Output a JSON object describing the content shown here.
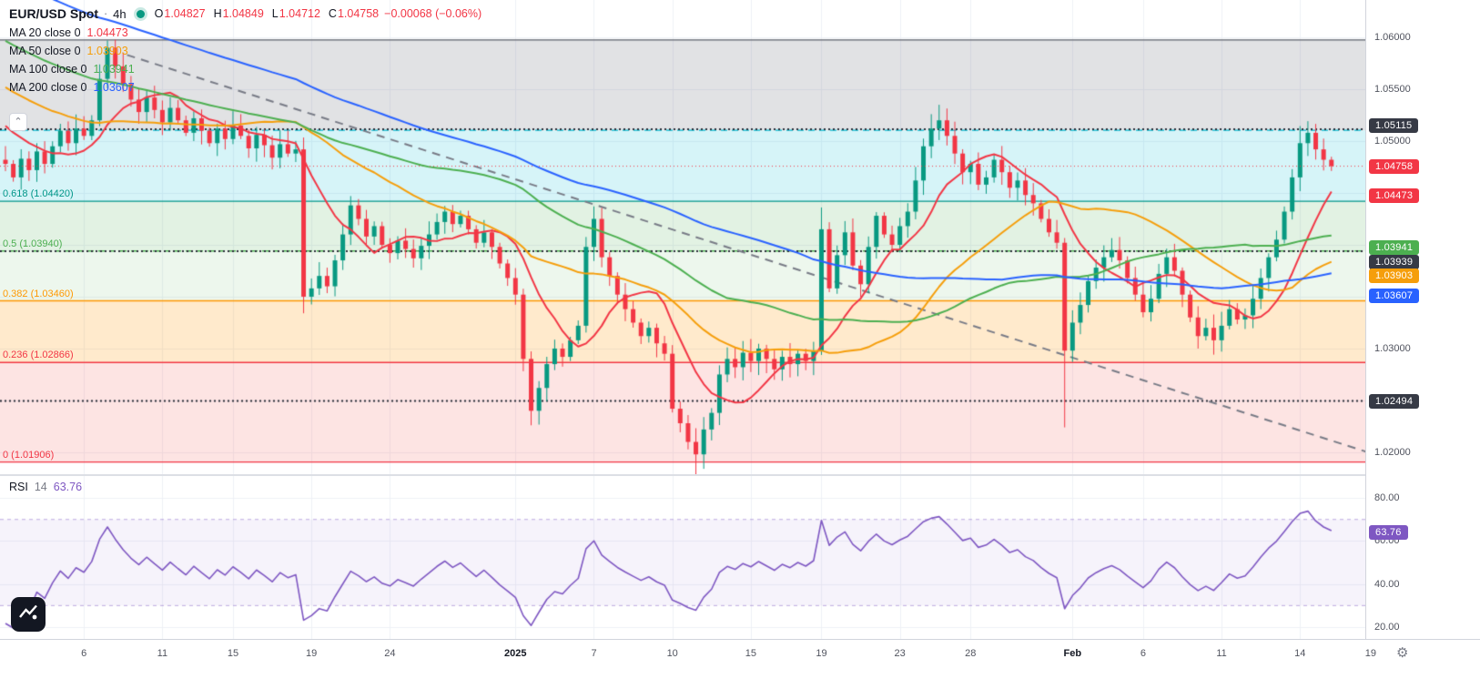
{
  "header": {
    "symbol": "EUR/USD Spot",
    "separator": "·",
    "interval": "4h",
    "ohlc": [
      {
        "k": "O",
        "v": "1.04827"
      },
      {
        "k": "H",
        "v": "1.04849"
      },
      {
        "k": "L",
        "v": "1.04712"
      },
      {
        "k": "C",
        "v": "1.04758"
      }
    ],
    "change": "−0.00068 (−0.06%)",
    "change_color": "#f23645"
  },
  "indicators": [
    {
      "label": "MA 20 close 0",
      "value": "1.04473",
      "color": "#f23645"
    },
    {
      "label": "MA 50 close 0",
      "value": "1.03903",
      "color": "#f59e0b"
    },
    {
      "label": "MA 100 close 0",
      "value": "1.03941",
      "color": "#4caf50"
    },
    {
      "label": "MA 200 close 0",
      "value": "1.03607",
      "color": "#2962ff"
    }
  ],
  "rsi_legend": {
    "label": "RSI",
    "param": "14",
    "value": "63.76",
    "color": "#7e57c2"
  },
  "price_axis": {
    "ticks": [
      {
        "v": 1.06,
        "label": "1.06000"
      },
      {
        "v": 1.055,
        "label": "1.05500"
      },
      {
        "v": 1.05,
        "label": "1.05000"
      },
      {
        "v": 1.045,
        "label": "1.04500"
      },
      {
        "v": 1.04,
        "label": "1.04000"
      },
      {
        "v": 1.035,
        "label": "1.03500"
      },
      {
        "v": 1.03,
        "label": "1.03000"
      },
      {
        "v": 1.025,
        "label": "1.02500"
      },
      {
        "v": 1.02,
        "label": "1.02000"
      }
    ],
    "badges": [
      {
        "value": "1.05115",
        "price": 1.05115,
        "color": "#363a45",
        "dy": -4
      },
      {
        "value": "1.04758",
        "price": 1.04758,
        "color": "#f23645",
        "dy": 0
      },
      {
        "value": "1.04473",
        "price": 1.04473,
        "color": "#f23645",
        "dy": 0
      },
      {
        "value": "1.03941",
        "price": 1.03941,
        "color": "#4caf50",
        "dy": -4
      },
      {
        "value": "1.03939",
        "price": 1.03939,
        "color": "#363a45",
        "dy": 12
      },
      {
        "value": "1.03903",
        "price": 1.03903,
        "color": "#f59e0b",
        "dy": 23
      },
      {
        "value": "1.03607",
        "price": 1.03607,
        "color": "#2962ff",
        "dy": 11
      },
      {
        "value": "1.02494",
        "price": 1.02494,
        "color": "#363a45",
        "dy": 0
      }
    ]
  },
  "rsi_axis": {
    "ticks": [
      {
        "v": 80,
        "label": "80.00"
      },
      {
        "v": 60,
        "label": "60.00"
      },
      {
        "v": 40,
        "label": "40.00"
      },
      {
        "v": 20,
        "label": "20.00"
      }
    ],
    "badge": {
      "value": "63.76",
      "v": 63.76,
      "color": "#7e57c2"
    }
  },
  "time_axis": {
    "labels": [
      {
        "t": "6",
        "i": 10
      },
      {
        "t": "11",
        "i": 20
      },
      {
        "t": "15",
        "i": 29
      },
      {
        "t": "19",
        "i": 39
      },
      {
        "t": "24",
        "i": 49
      },
      {
        "t": "2025",
        "i": 65,
        "major": true
      },
      {
        "t": "7",
        "i": 75
      },
      {
        "t": "10",
        "i": 85
      },
      {
        "t": "15",
        "i": 95
      },
      {
        "t": "19",
        "i": 104
      },
      {
        "t": "23",
        "i": 114
      },
      {
        "t": "28",
        "i": 123
      },
      {
        "t": "Feb",
        "i": 136,
        "major": true
      },
      {
        "t": "6",
        "i": 145
      },
      {
        "t": "11",
        "i": 155
      },
      {
        "t": "14",
        "i": 165
      },
      {
        "t": "19",
        "i": 174
      }
    ]
  },
  "fib": {
    "levels": [
      {
        "r": "1",
        "price": 1.05975,
        "label": "",
        "line": "#5d606b",
        "style": "solid"
      },
      {
        "r": "0.786",
        "price": 1.05104,
        "label": "",
        "line": "#00bcd4",
        "style": "dashed"
      },
      {
        "r": "0.618",
        "price": 1.0442,
        "label": "0.618 (1.04420)",
        "line": "#009688",
        "style": "solid"
      },
      {
        "r": "0.5",
        "price": 1.0394,
        "label": "0.5 (1.03940)",
        "line": "#4caf50",
        "style": "dashed"
      },
      {
        "r": "0.382",
        "price": 1.0346,
        "label": "0.382 (1.03460)",
        "line": "#ff9800",
        "style": "solid"
      },
      {
        "r": "0.236",
        "price": 1.02866,
        "label": "0.236 (1.02866)",
        "line": "#f23645",
        "style": "solid"
      },
      {
        "r": "0",
        "price": 1.01906,
        "label": "0 (1.01906)",
        "line": "#f23645",
        "style": "solid"
      }
    ],
    "bands": [
      "rgba(120,123,134,0.22)",
      "rgba(0,188,212,0.16)",
      "rgba(76,175,80,0.16)",
      "rgba(76,175,80,0.10)",
      "rgba(255,152,0,0.20)",
      "rgba(244,67,54,0.14)"
    ]
  },
  "chart_data": {
    "type": "candlestick",
    "symbol": "EUR/USD",
    "interval": "4h",
    "ylim": [
      1.0178,
      1.0636
    ],
    "up_color": "#089981",
    "down_color": "#f23645",
    "last_price": 1.04758,
    "first_open": 1.0482,
    "closes": [
      1.0478,
      1.0465,
      1.0483,
      1.0472,
      1.049,
      1.0478,
      1.0495,
      1.051,
      1.0498,
      1.0512,
      1.0505,
      1.052,
      1.056,
      1.059,
      1.0572,
      1.0555,
      1.054,
      1.0528,
      1.0542,
      1.053,
      1.0518,
      1.0532,
      1.052,
      1.0508,
      1.0522,
      1.051,
      1.0498,
      1.0512,
      1.0502,
      1.0515,
      1.0505,
      1.0493,
      1.0506,
      1.0496,
      1.0484,
      1.0497,
      1.0488,
      1.0492,
      1.035,
      1.0358,
      1.037,
      1.036,
      1.0385,
      1.041,
      1.0438,
      1.0425,
      1.0408,
      1.0418,
      1.04,
      1.0392,
      1.0404,
      1.0396,
      1.0387,
      1.0399,
      1.041,
      1.0422,
      1.0432,
      1.042,
      1.0428,
      1.0415,
      1.0402,
      1.0412,
      1.0398,
      1.0382,
      1.0368,
      1.0352,
      1.029,
      1.024,
      1.0262,
      1.0285,
      1.03,
      1.0292,
      1.0308,
      1.0322,
      1.0398,
      1.0425,
      1.0388,
      1.037,
      1.0352,
      1.0338,
      1.0325,
      1.0312,
      1.032,
      1.0305,
      1.0295,
      1.0242,
      1.0228,
      1.021,
      1.0198,
      1.0222,
      1.0238,
      1.0275,
      1.029,
      1.0282,
      1.0296,
      1.0288,
      1.03,
      1.029,
      1.028,
      1.0292,
      1.0285,
      1.0295,
      1.0288,
      1.0298,
      1.0415,
      1.0358,
      1.039,
      1.0412,
      1.038,
      1.0362,
      1.0398,
      1.0428,
      1.041,
      1.04,
      1.0418,
      1.0432,
      1.0462,
      1.0495,
      1.0512,
      1.052,
      1.0505,
      1.0488,
      1.047,
      1.0478,
      1.0458,
      1.0465,
      1.0482,
      1.047,
      1.0455,
      1.0462,
      1.0448,
      1.044,
      1.0425,
      1.0412,
      1.0402,
      1.0298,
      1.0325,
      1.0342,
      1.0365,
      1.0378,
      1.0388,
      1.0395,
      1.0385,
      1.0368,
      1.0352,
      1.0335,
      1.0348,
      1.0372,
      1.0388,
      1.0375,
      1.0352,
      1.033,
      1.0312,
      1.032,
      1.0308,
      1.0322,
      1.0338,
      1.0328,
      1.0332,
      1.0348,
      1.0368,
      1.0388,
      1.0405,
      1.0432,
      1.0465,
      1.0498,
      1.0508,
      1.0492,
      1.0482,
      1.04758
    ],
    "wick_overrides": {
      "13": {
        "h": 1.0597
      },
      "38": {
        "l": 1.0334
      },
      "44": {
        "h": 1.0447
      },
      "67": {
        "l": 1.0226
      },
      "75": {
        "h": 1.0437
      },
      "88": {
        "l": 1.0178
      },
      "104": {
        "h": 1.0436
      },
      "119": {
        "h": 1.0535
      },
      "135": {
        "l": 1.0224
      },
      "165": {
        "h": 1.05145
      },
      "169": {
        "h": 1.04849,
        "l": 1.04712
      }
    },
    "moving_averages": [
      {
        "name": "MA 20",
        "window": 10,
        "color": "#f23645",
        "value": 1.04473
      },
      {
        "name": "MA 50",
        "window": 30,
        "color": "#f59e0b",
        "value": 1.03903
      },
      {
        "name": "MA 100",
        "window": 55,
        "color": "#4caf50",
        "value": 1.03941
      },
      {
        "name": "MA 200",
        "window": 90,
        "color": "#2962ff",
        "value": 1.03607
      }
    ],
    "prehistory": {
      "count": 90,
      "start": 1.082,
      "end": 1.0505,
      "wiggle": 0.0008
    },
    "horizontal_dotted_lines": [
      {
        "price": 1.05115
      },
      {
        "price": 1.03939
      },
      {
        "price": 1.02494
      }
    ],
    "trendline": {
      "i1": 15.5,
      "p1": 1.0583,
      "i2": 174.5,
      "p2": 1.0198,
      "color": "#787b86"
    },
    "rsi": {
      "period": 14,
      "current": 63.76,
      "upper": 70,
      "lower": 30,
      "ylim": [
        14.5,
        90.6
      ],
      "color": "#7e57c2",
      "band_fill": "rgba(126,87,194,0.07)",
      "band_line": "rgba(126,87,194,0.5)"
    }
  },
  "misc": {
    "gear_icon": "⚙",
    "chevron": "⌃"
  }
}
